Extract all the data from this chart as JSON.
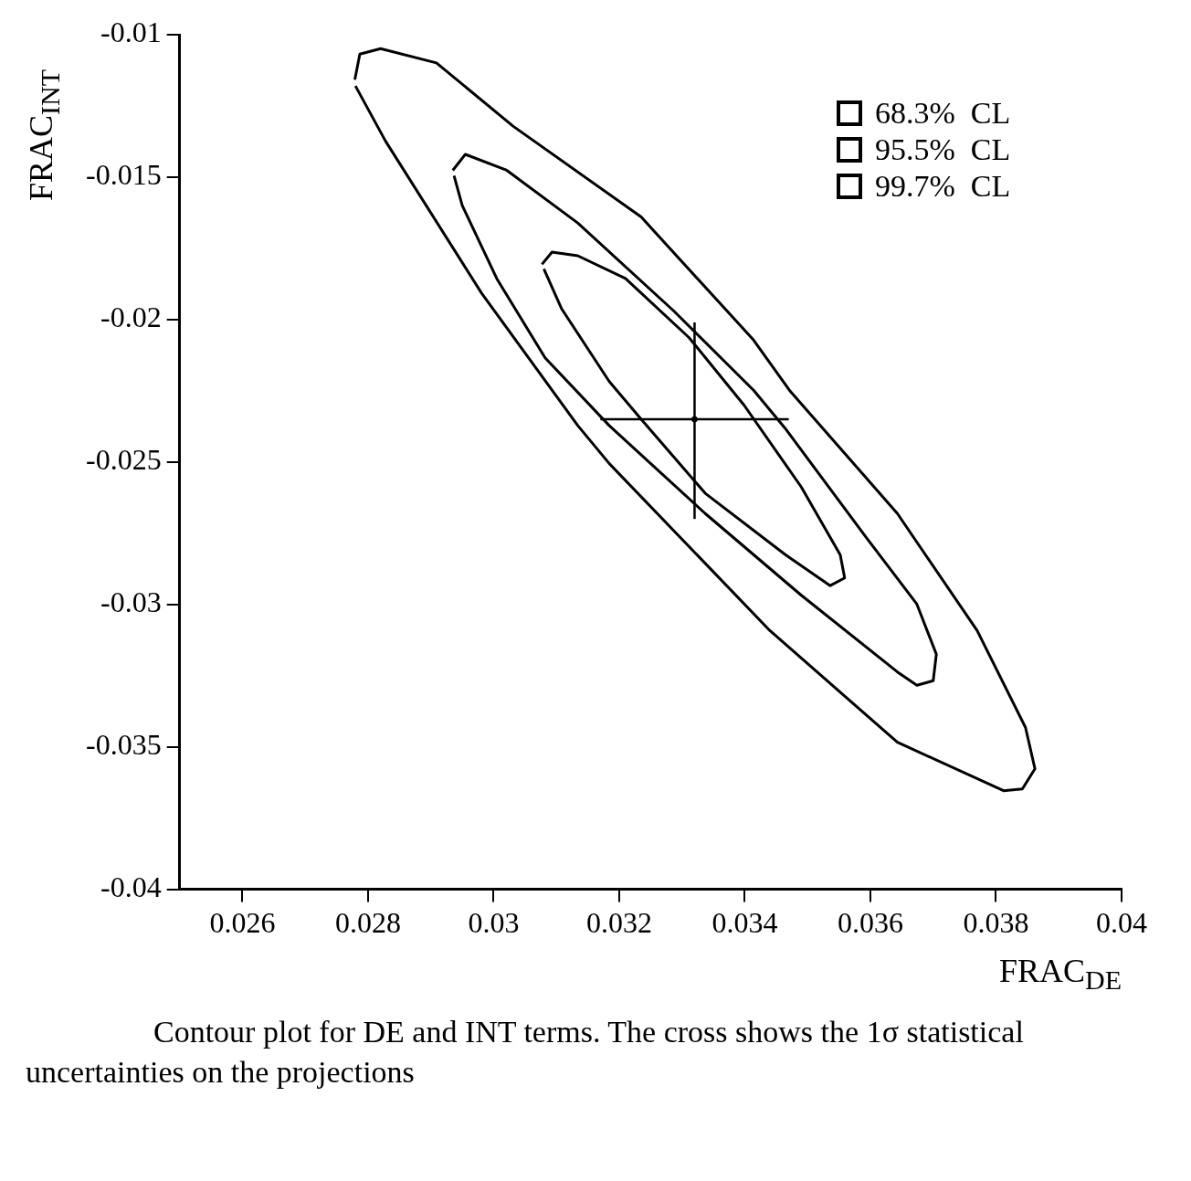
{
  "chart_data": {
    "type": "line",
    "xlabel": "FRAC$_{DE}$",
    "ylabel": "FRAC$_{INT}$",
    "legend": "top right",
    "grid": false,
    "marker": "none",
    "xlim": [
      0.025,
      0.04
    ],
    "xticks": [
      0.026,
      0.028,
      0.03,
      0.032,
      0.034,
      0.036,
      0.038,
      0.04
    ],
    "ylim": [
      -0.04,
      -0.01
    ],
    "yticks": [
      -0.04,
      -0.035,
      -0.03,
      -0.025,
      -0.02,
      -0.015,
      -0.01
    ],
    "series": [
      {
        "name": "68.3%  CL",
        "color": "#000000",
        "x": [
          0.03077,
          0.03093,
          0.03134,
          0.0321,
          0.03311,
          0.03399,
          0.0349,
          0.03552,
          0.03559,
          0.03536,
          0.03465,
          0.03337,
          0.03235,
          0.03184,
          0.03108,
          0.0308
        ],
        "values": [
          -0.01806,
          -0.01763,
          -0.01776,
          -0.01856,
          -0.02063,
          -0.02301,
          -0.02588,
          -0.02826,
          -0.02907,
          -0.02934,
          -0.02826,
          -0.0261,
          -0.0235,
          -0.02217,
          -0.01961,
          -0.01822
        ]
      },
      {
        "name": "95.5%  CL",
        "color": "#000000",
        "x": [
          0.02935,
          0.02955,
          0.03021,
          0.03134,
          0.03287,
          0.03414,
          0.03464,
          0.03593,
          0.03674,
          0.03705,
          0.037,
          0.03674,
          0.03643,
          0.0349,
          0.03337,
          0.03184,
          0.03082,
          0.03005,
          0.0295,
          0.02937
        ],
        "values": [
          -0.01476,
          -0.0142,
          -0.01476,
          -0.01661,
          -0.0197,
          -0.02248,
          -0.02381,
          -0.02764,
          -0.02999,
          -0.03175,
          -0.03268,
          -0.03284,
          -0.03237,
          -0.02968,
          -0.02681,
          -0.02372,
          -0.02134,
          -0.01856,
          -0.01599,
          -0.01495
        ]
      },
      {
        "name": "99.7%  CL",
        "color": "#000000",
        "x": [
          0.02779,
          0.02787,
          0.0282,
          0.02909,
          0.03031,
          0.03235,
          0.03414,
          0.03471,
          0.03643,
          0.0377,
          0.03847,
          0.03862,
          0.03842,
          0.03812,
          0.03643,
          0.0344,
          0.03184,
          0.03134,
          0.02981,
          0.02828,
          0.0278
        ],
        "values": [
          -0.01158,
          -0.01068,
          -0.01049,
          -0.01099,
          -0.01321,
          -0.0164,
          -0.02072,
          -0.02248,
          -0.02681,
          -0.03092,
          -0.03432,
          -0.03577,
          -0.03648,
          -0.03654,
          -0.03484,
          -0.03092,
          -0.02505,
          -0.02372,
          -0.01908,
          -0.01374,
          -0.0118
        ]
      },
      {
        "type": "scatter",
        "color": "#000000",
        "marker": "circle",
        "x": [
          0.0332
        ],
        "values": [
          -0.0235
        ],
        "xerrors": [
          [
            0.0317,
            0.0347
          ]
        ],
        "errors": [
          [
            -0.027,
            -0.0201
          ]
        ]
      }
    ],
    "annotations": [
      "Contour plot for DE and INT terms. The cross shows the 1σ statistical uncertainties on the projections"
    ]
  }
}
